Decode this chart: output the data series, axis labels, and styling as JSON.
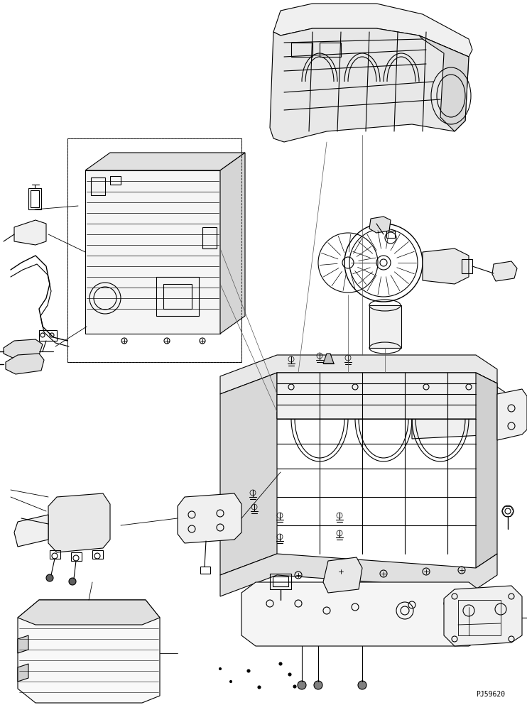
{
  "title": "",
  "background_color": "#ffffff",
  "line_color": "#000000",
  "line_width": 0.8,
  "fig_width": 7.42,
  "fig_height": 9.93,
  "watermark": "PJ59620"
}
